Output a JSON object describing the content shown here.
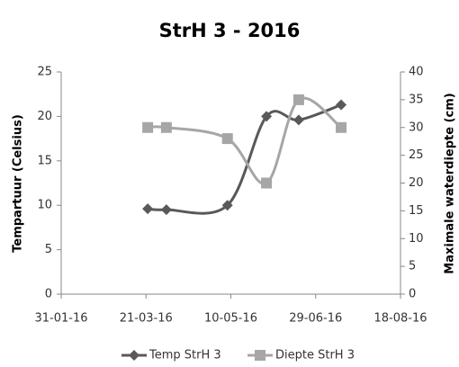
{
  "chart_data": {
    "type": "line",
    "title": "StrH 3 - 2016",
    "x": [
      "2016-03-22",
      "2016-04-02",
      "2016-05-08",
      "2016-05-31",
      "2016-06-19",
      "2016-07-14"
    ],
    "series": [
      {
        "name": "Temp StrH 3",
        "color": "#595959",
        "marker": "diamond",
        "values": [
          9.6,
          9.5,
          10,
          20,
          19.6,
          21.3
        ]
      },
      {
        "name": "Diepte StrH 3",
        "color": "#a6a6a6",
        "marker": "square",
        "axis": "y2",
        "values": [
          30,
          30,
          28,
          20,
          35,
          30
        ]
      }
    ],
    "xlim": [
      "2016-01-31",
      "2016-08-18"
    ],
    "xticks": [
      {
        "value": "2016-01-31",
        "label": "31-01-16"
      },
      {
        "value": "2016-03-21",
        "label": "21-03-16"
      },
      {
        "value": "2016-05-10",
        "label": "10-05-16"
      },
      {
        "value": "2016-06-29",
        "label": "29-06-16"
      },
      {
        "value": "2016-08-18",
        "label": "18-08-16"
      }
    ],
    "ylim": [
      0,
      25
    ],
    "yticks": [
      0,
      5,
      10,
      15,
      20,
      25
    ],
    "y2lim": [
      0,
      40
    ],
    "y2ticks": [
      0,
      5,
      10,
      15,
      20,
      25,
      30,
      35,
      40
    ],
    "ylabel": "Tempartuur (Celsius)",
    "y2label": "Maximale waterdiepte (cm)",
    "legend": "bottom"
  }
}
